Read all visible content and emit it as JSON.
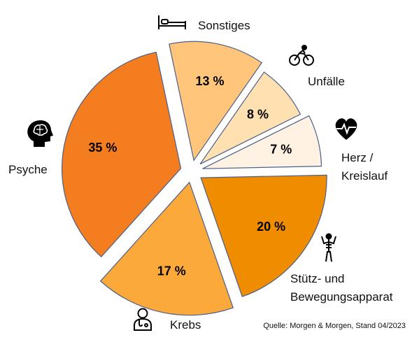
{
  "chart_data": {
    "type": "pie",
    "title": "",
    "source": "Quelle: Morgen & Morgen, Stand 04/2023",
    "slices": [
      {
        "label": "Sonstiges",
        "label_lines": [
          "Sonstiges"
        ],
        "value": 13,
        "value_label": "13 %",
        "color": "#FFC57A",
        "icon": "bed-icon"
      },
      {
        "label": "Unfälle",
        "label_lines": [
          "Unfälle"
        ],
        "value": 8,
        "value_label": "8 %",
        "color": "#FFE0B0",
        "icon": "cyclist-icon"
      },
      {
        "label": "Herz / Kreislauf",
        "label_lines": [
          "Herz /",
          "Kreislauf"
        ],
        "value": 7,
        "value_label": "7 %",
        "color": "#FFF2E2",
        "icon": "heartbeat-icon"
      },
      {
        "label": "Stütz- und Bewegungsapparat",
        "label_lines": [
          "Stütz- und",
          "Bewegungsapparat"
        ],
        "value": 20,
        "value_label": "20 %",
        "color": "#EF8C00",
        "icon": "skeleton-icon"
      },
      {
        "label": "Krebs",
        "label_lines": [
          "Krebs"
        ],
        "value": 17,
        "value_label": "17 %",
        "color": "#FCA93C",
        "icon": "doctor-icon"
      },
      {
        "label": "Psyche",
        "label_lines": [
          "Psyche"
        ],
        "value": 35,
        "value_label": "35 %",
        "color": "#F47D20",
        "icon": "brain-head-icon"
      }
    ]
  }
}
